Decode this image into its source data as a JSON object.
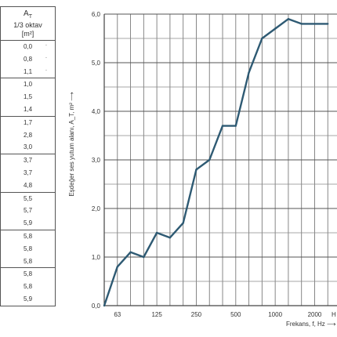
{
  "table": {
    "header_symbol": "A",
    "header_subscript": "T",
    "header_line2": "1/3 oktav",
    "header_unit": "[m²]",
    "groups": [
      [
        "0,0",
        "0,8",
        "1,1"
      ],
      [
        "1,0",
        "1,5",
        "1,4"
      ],
      [
        "1,7",
        "2,8",
        "3,0"
      ],
      [
        "3,7",
        "3,7",
        "4,8"
      ],
      [
        "5,5",
        "5,7",
        "5,9"
      ],
      [
        "5,8",
        "5,8",
        "5,8"
      ],
      [
        "5,8",
        "5,8",
        "5,9"
      ]
    ]
  },
  "chart_data": {
    "type": "line",
    "ylabel": "Eşdeğer ses yutum alanı, A_T, m² ⟶",
    "xlabel": "Frekans, f, Hz ⟶",
    "ylim": [
      0,
      6
    ],
    "yticks": [
      "0,0",
      "1,0",
      "2,0",
      "3,0",
      "4,0",
      "5,0",
      "6,0"
    ],
    "xticks": [
      "63",
      "125",
      "250",
      "500",
      "1000",
      "2000"
    ],
    "x": [
      50,
      63,
      80,
      100,
      125,
      160,
      200,
      250,
      315,
      400,
      500,
      630,
      800,
      1000,
      1250,
      1600,
      2000,
      2500
    ],
    "y": [
      0.0,
      0.8,
      1.1,
      1.0,
      1.5,
      1.4,
      1.7,
      2.8,
      3.0,
      3.7,
      3.7,
      4.8,
      5.5,
      5.7,
      5.9,
      5.8,
      5.8,
      5.8
    ],
    "grid": true,
    "line_color": "#2e5a73"
  }
}
